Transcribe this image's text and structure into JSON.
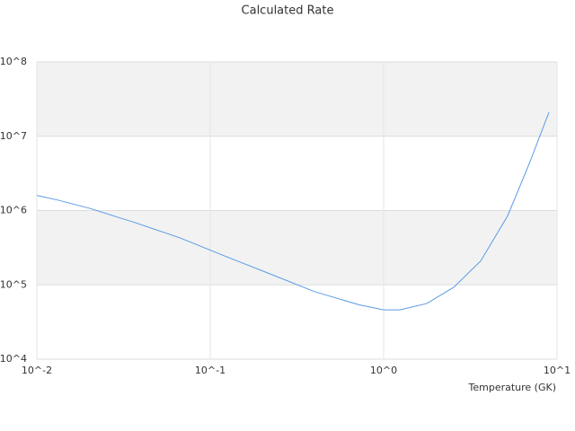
{
  "chart_data": {
    "type": "line",
    "title": "Calculated Rate",
    "x_label": "Temperature (GK)",
    "log_x": true,
    "log_y": true,
    "grid": true,
    "bands": true,
    "x": [
      0.01,
      0.0133,
      0.0202,
      0.0367,
      0.0667,
      0.121,
      0.22,
      0.4,
      0.72,
      1.0,
      1.24,
      1.77,
      2.54,
      3.63,
      5.19,
      7.0,
      8.98
    ],
    "series": [
      {
        "name": "Calculated Rate",
        "color": "#5a9be6",
        "values": [
          1600000,
          1380000,
          1070000,
          690000,
          430000,
          245000,
          141000,
          81000,
          54000,
          46000,
          46000,
          56000,
          93000,
          210000,
          850000,
          4600000,
          21000000
        ]
      }
    ],
    "xlim": [
      0.01,
      10
    ],
    "xticks": [
      {
        "value": 0.01,
        "label": "10^-2"
      },
      {
        "value": 0.1,
        "label": "10^-1"
      },
      {
        "value": 1,
        "label": "10^0"
      },
      {
        "value": 10,
        "label": "10^1"
      }
    ],
    "ylim": [
      10000,
      100000000
    ],
    "yticks": [
      {
        "value": 10000,
        "label": "10^4"
      },
      {
        "value": 100000,
        "label": "10^5"
      },
      {
        "value": 1000000,
        "label": "10^6"
      },
      {
        "value": 10000000,
        "label": "10^7"
      },
      {
        "value": 100000000,
        "label": "10^8"
      }
    ]
  }
}
